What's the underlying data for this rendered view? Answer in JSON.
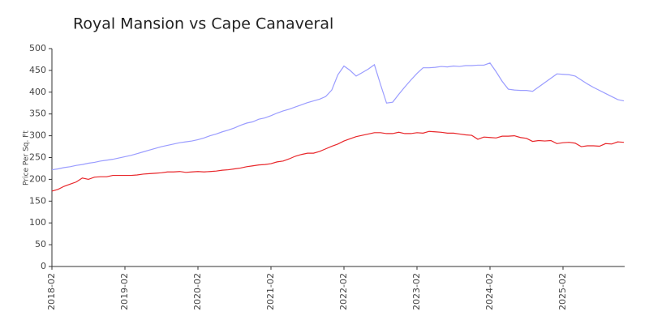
{
  "chart_data": {
    "type": "line",
    "title": "Royal Mansion vs Cape Canaveral",
    "ylabel": "Price Per Sq. Ft",
    "categories": [
      "2018-02",
      null,
      null,
      null,
      null,
      null,
      null,
      null,
      null,
      null,
      null,
      null,
      "2019-02",
      null,
      null,
      null,
      null,
      null,
      null,
      null,
      null,
      null,
      null,
      null,
      "2020-02",
      null,
      null,
      null,
      null,
      null,
      null,
      null,
      null,
      null,
      null,
      null,
      "2021-02",
      null,
      null,
      null,
      null,
      null,
      null,
      null,
      null,
      null,
      null,
      null,
      "2022-02",
      null,
      null,
      null,
      null,
      null,
      null,
      null,
      null,
      null,
      null,
      null,
      "2023-02",
      null,
      null,
      null,
      null,
      null,
      null,
      null,
      null,
      null,
      null,
      null,
      "2024-02",
      null,
      null,
      null,
      null,
      null,
      null,
      null,
      null,
      null,
      null,
      null,
      "2025-02",
      null,
      null,
      null,
      null,
      null,
      null,
      null,
      null,
      null,
      null
    ],
    "series": [
      {
        "color": "#9a9cff",
        "values": [
          222,
          224,
          227,
          229,
          232,
          234,
          237,
          239,
          242,
          244,
          246,
          249,
          252,
          255,
          259,
          263,
          267,
          271,
          275,
          278,
          281,
          284,
          286,
          288,
          291,
          295,
          300,
          304,
          309,
          313,
          318,
          324,
          329,
          332,
          338,
          341,
          346,
          352,
          357,
          361,
          366,
          371,
          376,
          380,
          384,
          390,
          405,
          440,
          460,
          450,
          437,
          445,
          453,
          463,
          418,
          375,
          377,
          395,
          412,
          428,
          443,
          456,
          456,
          457,
          459,
          458,
          460,
          459,
          461,
          461,
          462,
          462,
          467,
          447,
          425,
          407,
          405,
          404,
          404,
          402,
          412,
          422,
          432,
          442,
          441,
          440,
          437,
          428,
          419,
          411,
          404,
          397,
          390,
          383,
          380
        ]
      },
      {
        "color": "#e8262a",
        "values": [
          173,
          177,
          184,
          189,
          194,
          203,
          200,
          205,
          206,
          206,
          209,
          209,
          209,
          209,
          210,
          212,
          213,
          214,
          215,
          217,
          217,
          218,
          216,
          217,
          218,
          217,
          218,
          219,
          221,
          222,
          224,
          226,
          229,
          231,
          233,
          234,
          236,
          240,
          242,
          247,
          253,
          257,
          260,
          260,
          264,
          270,
          276,
          281,
          288,
          293,
          298,
          301,
          304,
          307,
          307,
          305,
          305,
          308,
          305,
          305,
          307,
          306,
          310,
          309,
          308,
          306,
          306,
          304,
          302,
          301,
          292,
          297,
          296,
          295,
          299,
          299,
          300,
          296,
          294,
          287,
          289,
          288,
          289,
          282,
          284,
          285,
          283,
          275,
          277,
          277,
          276,
          282,
          281,
          286,
          285
        ]
      }
    ],
    "ylim": [
      0,
      500
    ],
    "yticks": [
      0,
      50,
      100,
      150,
      200,
      250,
      300,
      350,
      400,
      450,
      500
    ],
    "grid": false
  }
}
